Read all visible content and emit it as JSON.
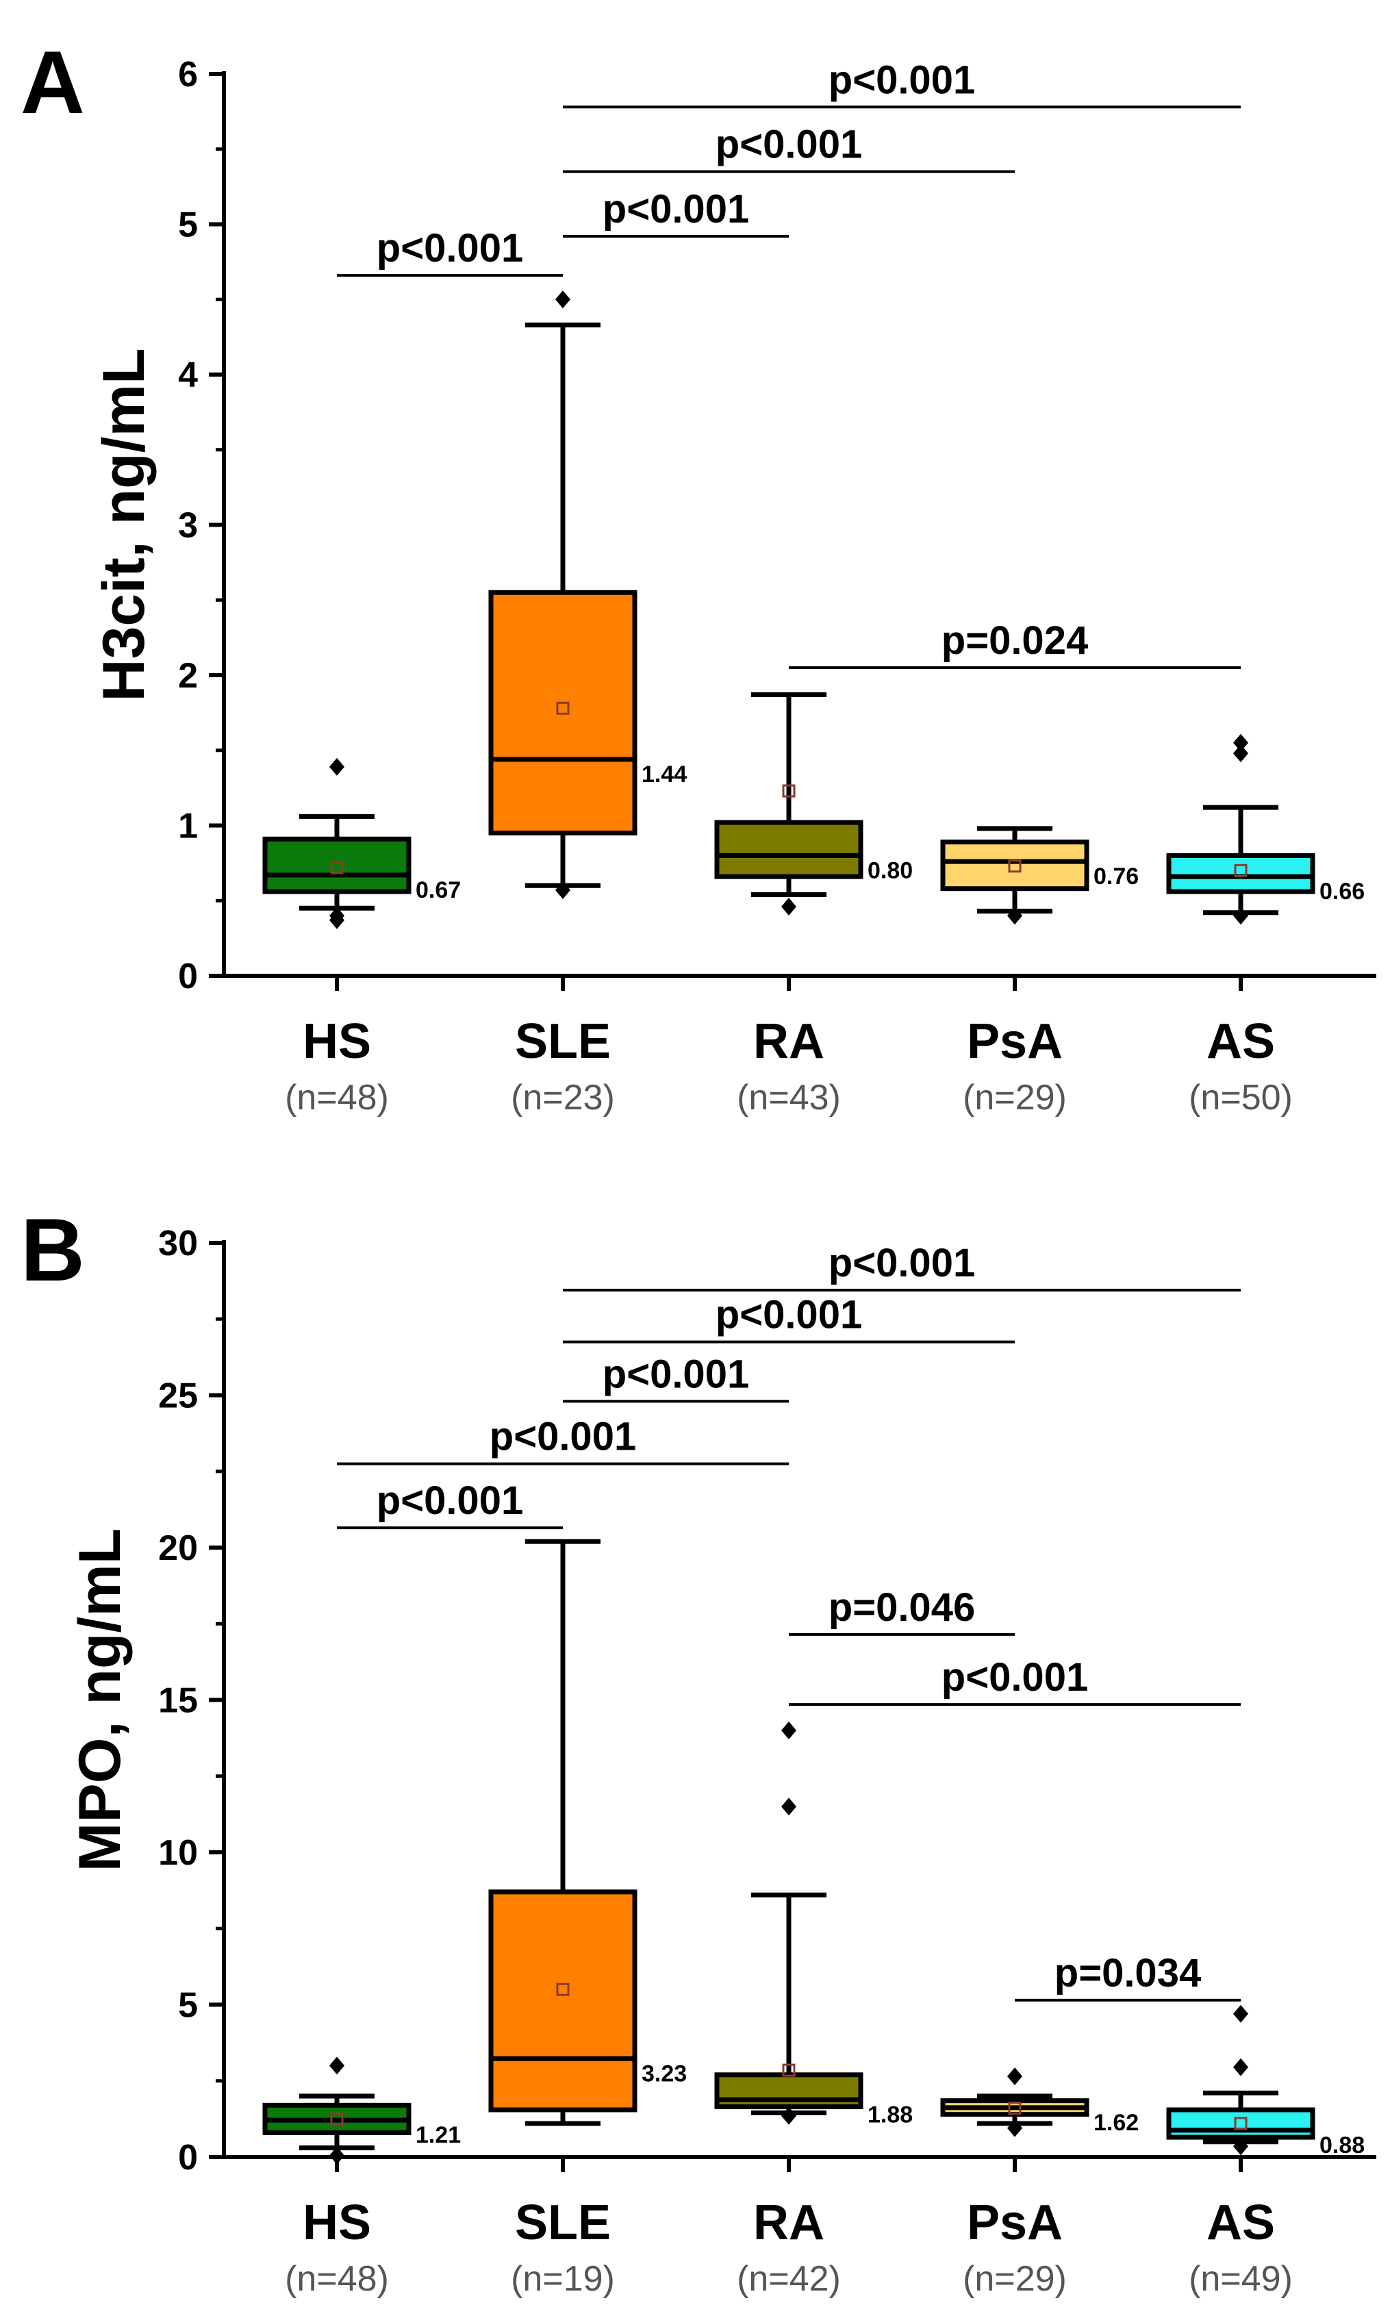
{
  "chart_data": [
    {
      "type": "box",
      "panel": "A",
      "ylabel": "H3cit, ng/mL",
      "ylim": [
        0,
        6
      ],
      "yticks": [
        "0",
        "1",
        "2",
        "3",
        "4",
        "5",
        "6"
      ],
      "categories": [
        "HS",
        "SLE",
        "RA",
        "PsA",
        "AS"
      ],
      "n_labels": [
        "(n=48)",
        "(n=23)",
        "(n=43)",
        "(n=29)",
        "(n=50)"
      ],
      "boxes": [
        {
          "name": "HS",
          "color": "#0a7a0a",
          "whisker_low": 0.45,
          "q1": 0.56,
          "median": 0.67,
          "q3": 0.91,
          "whisker_high": 1.06,
          "mean": 0.72,
          "outliers": [
            0.37,
            0.4,
            1.39
          ],
          "median_label": "0.67"
        },
        {
          "name": "SLE",
          "color": "#ff7f00",
          "whisker_low": 0.6,
          "q1": 0.95,
          "median": 1.44,
          "q3": 2.55,
          "whisker_high": 4.33,
          "mean": 1.78,
          "outliers": [
            0.57,
            4.5
          ],
          "median_label": "1.44"
        },
        {
          "name": "RA",
          "color": "#7b7b00",
          "whisker_low": 0.54,
          "q1": 0.66,
          "median": 0.8,
          "q3": 1.02,
          "whisker_high": 1.87,
          "mean": 1.23,
          "outliers": [
            0.46
          ],
          "median_label": "0.80"
        },
        {
          "name": "PsA",
          "color": "#ffd56b",
          "whisker_low": 0.43,
          "q1": 0.58,
          "median": 0.76,
          "q3": 0.89,
          "whisker_high": 0.98,
          "mean": 0.73,
          "outliers": [
            0.4
          ],
          "median_label": "0.76"
        },
        {
          "name": "AS",
          "color": "#2bf2f2",
          "whisker_low": 0.42,
          "q1": 0.56,
          "median": 0.66,
          "q3": 0.8,
          "whisker_high": 1.12,
          "mean": 0.7,
          "outliers": [
            0.4,
            1.48,
            1.55
          ],
          "median_label": "0.66"
        }
      ],
      "comparisons": [
        {
          "from": 0,
          "to": 1,
          "y": 4.66,
          "label": "p<0.001"
        },
        {
          "from": 1,
          "to": 2,
          "y": 4.92,
          "label": "p<0.001"
        },
        {
          "from": 1,
          "to": 3,
          "y": 5.35,
          "label": "p<0.001"
        },
        {
          "from": 1,
          "to": 4,
          "y": 5.78,
          "label": "p<0.001"
        },
        {
          "from": 2,
          "to": 4,
          "y": 2.05,
          "label": "p=0.024"
        }
      ]
    },
    {
      "type": "box",
      "panel": "B",
      "ylabel": "MPO, ng/mL",
      "ylim": [
        0,
        30
      ],
      "yticks": [
        "0",
        "5",
        "10",
        "15",
        "20",
        "25",
        "30"
      ],
      "categories": [
        "HS",
        "SLE",
        "RA",
        "PsA",
        "AS"
      ],
      "n_labels": [
        "(n=48)",
        "(n=19)",
        "(n=42)",
        "(n=29)",
        "(n=49)"
      ],
      "boxes": [
        {
          "name": "HS",
          "color": "#0a7a0a",
          "whisker_low": 0.3,
          "q1": 0.8,
          "median": 1.21,
          "q3": 1.7,
          "whisker_high": 2.0,
          "mean": 1.25,
          "outliers": [
            0.05,
            3.0
          ],
          "median_label": "1.21"
        },
        {
          "name": "SLE",
          "color": "#ff7f00",
          "whisker_low": 1.1,
          "q1": 1.55,
          "median": 3.23,
          "q3": 8.7,
          "whisker_high": 20.2,
          "mean": 5.5,
          "outliers": [],
          "median_label": "3.23"
        },
        {
          "name": "RA",
          "color": "#7b7b00",
          "whisker_low": 1.45,
          "q1": 1.65,
          "median": 1.88,
          "q3": 2.7,
          "whisker_high": 8.6,
          "mean": 2.85,
          "outliers": [
            1.35,
            11.5,
            14.0
          ],
          "median_label": "1.88"
        },
        {
          "name": "PsA",
          "color": "#ffd56b",
          "whisker_low": 1.1,
          "q1": 1.4,
          "median": 1.62,
          "q3": 1.85,
          "whisker_high": 2.0,
          "mean": 1.6,
          "outliers": [
            0.95,
            2.65
          ],
          "median_label": "1.62"
        },
        {
          "name": "AS",
          "color": "#2bf2f2",
          "whisker_low": 0.5,
          "q1": 0.65,
          "median": 0.88,
          "q3": 1.55,
          "whisker_high": 2.1,
          "mean": 1.1,
          "outliers": [
            0.35,
            2.95,
            4.7
          ],
          "median_label": "0.88"
        }
      ],
      "comparisons": [
        {
          "from": 0,
          "to": 1,
          "y": 20.65,
          "label": "p<0.001"
        },
        {
          "from": 0,
          "to": 2,
          "y": 22.75,
          "label": "p<0.001"
        },
        {
          "from": 1,
          "to": 2,
          "y": 24.8,
          "label": "p<0.001"
        },
        {
          "from": 1,
          "to": 3,
          "y": 26.75,
          "label": "p<0.001"
        },
        {
          "from": 1,
          "to": 4,
          "y": 28.45,
          "label": "p<0.001"
        },
        {
          "from": 2,
          "to": 3,
          "y": 17.15,
          "label": "p=0.046"
        },
        {
          "from": 2,
          "to": 4,
          "y": 14.85,
          "label": "p<0.001"
        },
        {
          "from": 3,
          "to": 4,
          "y": 5.15,
          "label": "p=0.034"
        }
      ]
    }
  ]
}
